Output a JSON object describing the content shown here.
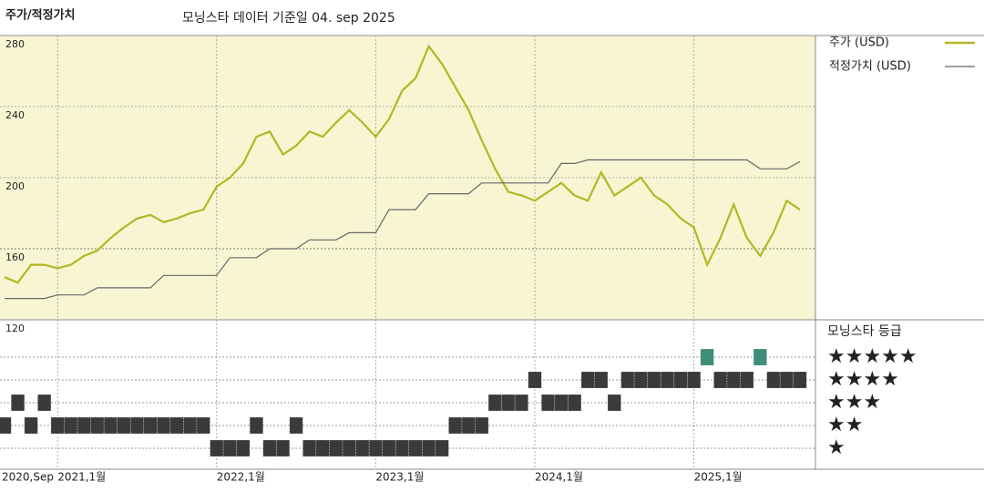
{
  "chart_data": {
    "type": "line",
    "title": "주가/적정가치",
    "subtitle": "모닝스타 데이터 기준일 04. sep 2025",
    "x": [
      "2020-09",
      "2020-10",
      "2020-11",
      "2020-12",
      "2021-01",
      "2021-02",
      "2021-03",
      "2021-04",
      "2021-05",
      "2021-06",
      "2021-07",
      "2021-08",
      "2021-09",
      "2021-10",
      "2021-11",
      "2021-12",
      "2022-01",
      "2022-02",
      "2022-03",
      "2022-04",
      "2022-05",
      "2022-06",
      "2022-07",
      "2022-08",
      "2022-09",
      "2022-10",
      "2022-11",
      "2022-12",
      "2023-01",
      "2023-02",
      "2023-03",
      "2023-04",
      "2023-05",
      "2023-06",
      "2023-07",
      "2023-08",
      "2023-09",
      "2023-10",
      "2023-11",
      "2023-12",
      "2024-01",
      "2024-02",
      "2024-03",
      "2024-04",
      "2024-05",
      "2024-06",
      "2024-07",
      "2024-08",
      "2024-09",
      "2024-10",
      "2024-11",
      "2024-12",
      "2025-01",
      "2025-02",
      "2025-03",
      "2025-04",
      "2025-05",
      "2025-06",
      "2025-07",
      "2025-08",
      "2025-09"
    ],
    "xticks": [
      {
        "value": "2020-09",
        "label": "2020,Sep"
      },
      {
        "value": "2021-01",
        "label": "2021,1월"
      },
      {
        "value": "2022-01",
        "label": "2022,1월"
      },
      {
        "value": "2023-01",
        "label": "2023,1월"
      },
      {
        "value": "2024-01",
        "label": "2024,1월"
      },
      {
        "value": "2025-01",
        "label": "2025,1월"
      }
    ],
    "ylim": [
      120,
      280
    ],
    "yticks": [
      120,
      160,
      200,
      240,
      280
    ],
    "grid": true,
    "series": [
      {
        "name": "주가 (USD)",
        "color": "#b3b625",
        "values": [
          144,
          141,
          151,
          151,
          149,
          151,
          156,
          159,
          166,
          172,
          177,
          179,
          175,
          177,
          180,
          182,
          195,
          200,
          208,
          223,
          226,
          213,
          218,
          226,
          223,
          231,
          238,
          231,
          223,
          233,
          249,
          256,
          274,
          264,
          251,
          238,
          221,
          205,
          192,
          190,
          187,
          192,
          197,
          190,
          187,
          203,
          190,
          195,
          200,
          190,
          185,
          177,
          172,
          151,
          166,
          185,
          166,
          156,
          169,
          187,
          182
        ]
      },
      {
        "name": "적정가치 (USD)",
        "color": "#666666",
        "values": [
          132,
          132,
          132,
          132,
          134,
          134,
          134,
          138,
          138,
          138,
          138,
          138,
          145,
          145,
          145,
          145,
          145,
          155,
          155,
          155,
          160,
          160,
          160,
          165,
          165,
          165,
          169,
          169,
          169,
          182,
          182,
          182,
          191,
          191,
          191,
          191,
          197,
          197,
          197,
          197,
          197,
          197,
          208,
          208,
          210,
          210,
          210,
          210,
          210,
          210,
          210,
          210,
          210,
          210,
          210,
          210,
          210,
          205,
          205,
          205,
          209
        ]
      }
    ],
    "ratings": {
      "title": "모닝스타 등급",
      "labels": [
        "★★★★★",
        "★★★★",
        "★★★",
        "★★",
        "★"
      ],
      "color": "#3a3a3a",
      "highlight_color": "#3f8c78",
      "values": [
        2,
        3,
        2,
        3,
        2,
        2,
        2,
        2,
        2,
        2,
        2,
        2,
        2,
        2,
        2,
        2,
        1,
        1,
        1,
        2,
        1,
        1,
        2,
        1,
        1,
        1,
        1,
        1,
        1,
        1,
        1,
        1,
        1,
        1,
        2,
        2,
        2,
        3,
        3,
        3,
        4,
        3,
        3,
        3,
        4,
        4,
        3,
        4,
        4,
        4,
        4,
        4,
        4,
        5,
        4,
        4,
        4,
        5,
        4,
        4,
        4
      ]
    }
  }
}
